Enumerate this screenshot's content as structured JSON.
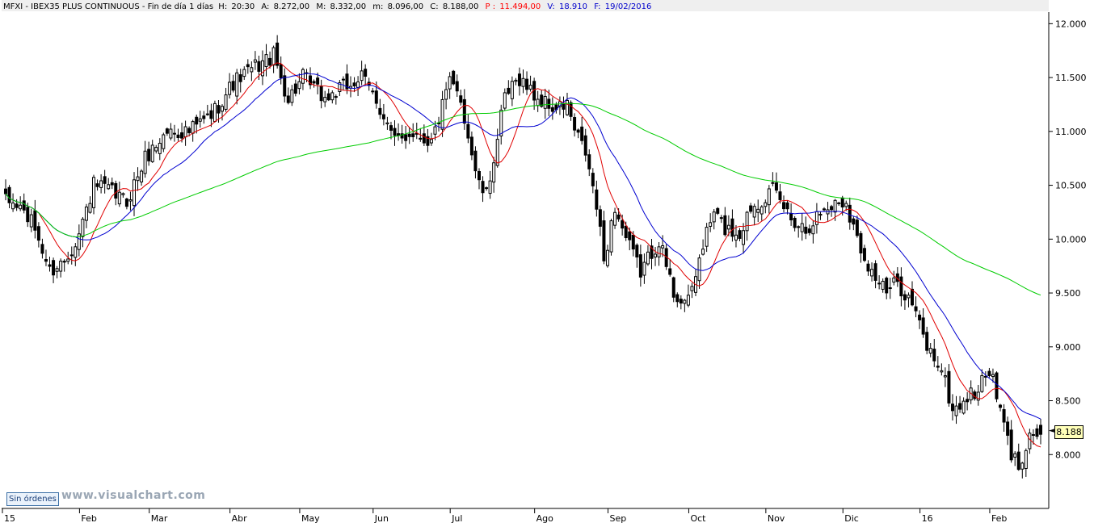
{
  "header": {
    "symbol": "MFXI - IBEX35 PLUS CONTINUOUS - Fin de día 1 días",
    "h_label": "H:",
    "h_value": "20:30",
    "a_label": "A:",
    "a_value": "8.272,00",
    "m_label": "M:",
    "m_value": "8.332,00",
    "min_label": "m:",
    "min_value": "8.096,00",
    "c_label": "C:",
    "c_value": "8.188,00",
    "p_label": "P :",
    "p_value": "11.494,00",
    "v_label": "V:",
    "v_value": "18.910",
    "f_label": "F:",
    "f_value": "19/02/2016"
  },
  "badge": "Sin órdenes",
  "watermark": "www.visualchart.com",
  "last_price_label": "8.188",
  "colors": {
    "candle": "#000000",
    "ma_fast": "#e00000",
    "ma_medium": "#0000d0",
    "ma_slow": "#00cc00",
    "header_blue": "#0000cc",
    "header_red": "#ff0000"
  },
  "chart_data": {
    "type": "candlestick",
    "title": "MFXI - IBEX35 PLUS CONTINUOUS",
    "xlabel": "",
    "ylabel": "",
    "ylim": [
      7500,
      12100
    ],
    "y_ticks": [
      8000,
      8500,
      9000,
      9500,
      10000,
      10500,
      11000,
      11500,
      12000
    ],
    "y_tick_labels": [
      "8.000",
      "8.500",
      "9.000",
      "9.500",
      "10.000",
      "10.500",
      "11.000",
      "11.500",
      "12.000"
    ],
    "x_tick_labels": [
      "15",
      "Feb",
      "Mar",
      "Abr",
      "May",
      "Jun",
      "Jul",
      "Ago",
      "Sep",
      "Oct",
      "Nov",
      "Dic",
      "16",
      "Feb"
    ],
    "grid": false,
    "n_sessions": 283,
    "month_start_sessions": [
      0,
      21,
      40,
      62,
      81,
      101,
      122,
      145,
      165,
      187,
      208,
      229,
      250,
      269
    ],
    "close_anchors": [
      [
        0,
        10350
      ],
      [
        4,
        10300
      ],
      [
        8,
        10100
      ],
      [
        12,
        9700
      ],
      [
        16,
        9800
      ],
      [
        20,
        10050
      ],
      [
        24,
        10500
      ],
      [
        28,
        10450
      ],
      [
        33,
        10350
      ],
      [
        38,
        10750
      ],
      [
        44,
        11000
      ],
      [
        50,
        11000
      ],
      [
        56,
        11150
      ],
      [
        62,
        11450
      ],
      [
        68,
        11600
      ],
      [
        73,
        11700
      ],
      [
        77,
        11300
      ],
      [
        81,
        11500
      ],
      [
        87,
        11300
      ],
      [
        92,
        11400
      ],
      [
        97,
        11500
      ],
      [
        101,
        11300
      ],
      [
        106,
        10900
      ],
      [
        111,
        11000
      ],
      [
        116,
        10900
      ],
      [
        121,
        11450
      ],
      [
        124,
        11300
      ],
      [
        127,
        10800
      ],
      [
        129,
        10500
      ],
      [
        131,
        10400
      ],
      [
        136,
        11300
      ],
      [
        140,
        11500
      ],
      [
        145,
        11300
      ],
      [
        150,
        11200
      ],
      [
        153,
        11250
      ],
      [
        155,
        11000
      ],
      [
        158,
        10800
      ],
      [
        161,
        10300
      ],
      [
        163,
        9800
      ],
      [
        166,
        10300
      ],
      [
        169,
        10000
      ],
      [
        173,
        9700
      ],
      [
        178,
        10000
      ],
      [
        182,
        9500
      ],
      [
        186,
        9400
      ],
      [
        190,
        9950
      ],
      [
        193,
        10250
      ],
      [
        196,
        10100
      ],
      [
        200,
        10050
      ],
      [
        203,
        10300
      ],
      [
        209,
        10450
      ],
      [
        214,
        10200
      ],
      [
        218,
        10100
      ],
      [
        222,
        10250
      ],
      [
        227,
        10350
      ],
      [
        229,
        10350
      ],
      [
        232,
        10000
      ],
      [
        236,
        9700
      ],
      [
        240,
        9500
      ],
      [
        243,
        9600
      ],
      [
        247,
        9400
      ],
      [
        251,
        9000
      ],
      [
        255,
        8800
      ],
      [
        258,
        8400
      ],
      [
        261,
        8500
      ],
      [
        265,
        8600
      ],
      [
        268,
        8800
      ],
      [
        271,
        8400
      ],
      [
        274,
        8000
      ],
      [
        276,
        7900
      ],
      [
        279,
        8200
      ],
      [
        282,
        8188
      ]
    ],
    "series": [
      {
        "name": "",
        "type": "candlestick",
        "color": "#000000"
      },
      {
        "name": "",
        "type": "moving-average",
        "period": 10,
        "color": "#e00000"
      },
      {
        "name": "",
        "type": "moving-average",
        "period": 20,
        "color": "#0000d0"
      },
      {
        "name": "",
        "type": "moving-average",
        "period": 100,
        "color": "#00cc00"
      }
    ],
    "last_close": 8188
  }
}
